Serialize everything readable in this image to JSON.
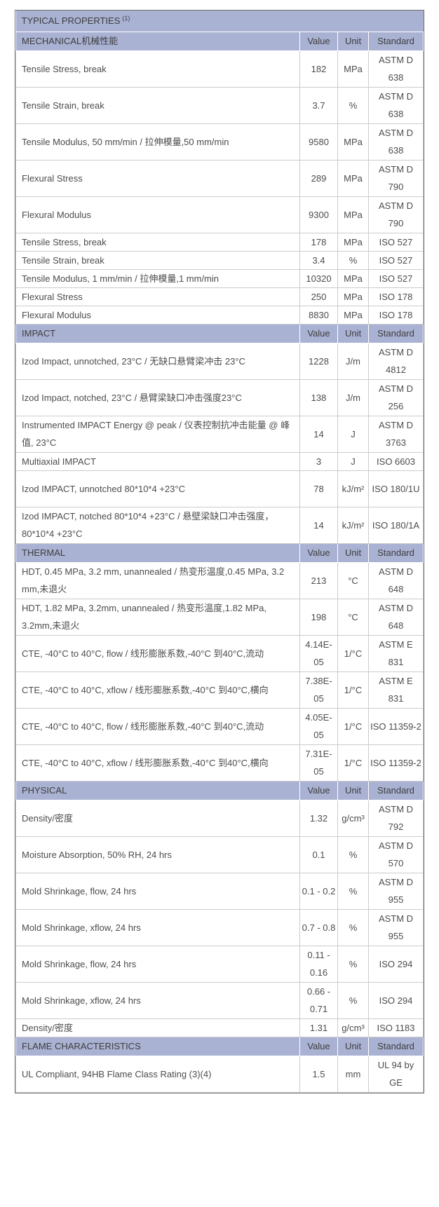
{
  "table": {
    "title": "TYPICAL PROPERTIES",
    "title_footnote": "(1)",
    "columns": [
      "Value",
      "Unit",
      "Standard"
    ],
    "sections": [
      {
        "label": "MECHANICAL机械性能",
        "rows": [
          {
            "property": "Tensile Stress, break",
            "value": "182",
            "unit": "MPa",
            "standard": "ASTM D 638",
            "tall": true
          },
          {
            "property": "Tensile Strain, break",
            "value": "3.7",
            "unit": "%",
            "standard": "ASTM D 638",
            "tall": true
          },
          {
            "property": "Tensile Modulus, 50 mm/min / 拉伸模量,50 mm/min",
            "value": "9580",
            "unit": "MPa",
            "standard": "ASTM D 638",
            "tall": true
          },
          {
            "property": "Flexural Stress",
            "value": "289",
            "unit": "MPa",
            "standard": "ASTM D 790",
            "tall": true
          },
          {
            "property": "Flexural Modulus",
            "value": "9300",
            "unit": "MPa",
            "standard": "ASTM D 790",
            "tall": true
          },
          {
            "property": "Tensile Stress, break",
            "value": "178",
            "unit": "MPa",
            "standard": "ISO 527",
            "tall": false
          },
          {
            "property": "Tensile Strain, break",
            "value": "3.4",
            "unit": "%",
            "standard": "ISO 527",
            "tall": false
          },
          {
            "property": "Tensile Modulus, 1 mm/min / 拉伸模量,1 mm/min",
            "value": "10320",
            "unit": "MPa",
            "standard": "ISO 527",
            "tall": false
          },
          {
            "property": "Flexural Stress",
            "value": "250",
            "unit": "MPa",
            "standard": "ISO 178",
            "tall": false
          },
          {
            "property": "Flexural Modulus",
            "value": "8830",
            "unit": "MPa",
            "standard": "ISO 178",
            "tall": false
          }
        ]
      },
      {
        "label": "IMPACT",
        "rows": [
          {
            "property": "Izod Impact, unnotched, 23°C / 无缺口悬臂梁冲击 23°C",
            "value": "1228",
            "unit": "J/m",
            "standard": "ASTM D 4812",
            "tall": true
          },
          {
            "property": "Izod Impact, notched, 23°C / 悬臂梁缺口冲击强度23°C",
            "value": "138",
            "unit": "J/m",
            "standard": "ASTM D 256",
            "tall": true
          },
          {
            "property": "Instrumented IMPACT Energy @ peak / 仪表控制抗冲击能量 @ 峰值, 23°C",
            "value": "14",
            "unit": "J",
            "standard": "ASTM D 3763",
            "tall": true
          },
          {
            "property": "Multiaxial IMPACT",
            "value": "3",
            "unit": "J",
            "standard": "ISO 6603",
            "tall": false
          },
          {
            "property": "Izod IMPACT, unnotched 80*10*4 +23°C",
            "value": "78",
            "unit": "kJ/m²",
            "standard": "ISO 180/1U",
            "tall": true
          },
          {
            "property": "Izod IMPACT, notched 80*10*4 +23°C / 悬壁梁缺口冲击强度，80*10*4 +23°C",
            "value": "14",
            "unit": "kJ/m²",
            "standard": "ISO 180/1A",
            "tall": true
          }
        ]
      },
      {
        "label": "THERMAL",
        "rows": [
          {
            "property": "HDT, 0.45 MPa, 3.2 mm, unannealed / 热变形温度,0.45 MPa, 3.2 mm,未退火",
            "value": "213",
            "unit": "°C",
            "standard": "ASTM D 648",
            "tall": true
          },
          {
            "property": "HDT, 1.82 MPa, 3.2mm, unannealed / 热变形温度,1.82 MPa, 3.2mm,未退火",
            "value": "198",
            "unit": "°C",
            "standard": "ASTM D 648",
            "tall": true
          },
          {
            "property": "CTE, -40°C to 40°C, flow / 线形膨胀系数,-40°C 到40°C,流动",
            "value": "4.14E-05",
            "unit": "1/°C",
            "standard": "ASTM E 831",
            "tall": true
          },
          {
            "property": "CTE, -40°C to 40°C, xflow / 线形膨胀系数,-40°C 到40°C,横向",
            "value": "7.38E-05",
            "unit": "1/°C",
            "standard": "ASTM E 831",
            "tall": true
          },
          {
            "property": "CTE, -40°C to 40°C, flow / 线形膨胀系数,-40°C 到40°C,流动",
            "value": "4.05E-05",
            "unit": "1/°C",
            "standard": "ISO 11359-2",
            "tall": true
          },
          {
            "property": "CTE, -40°C to 40°C, xflow / 线形膨胀系数,-40°C 到40°C,横向",
            "value": "7.31E-05",
            "unit": "1/°C",
            "standard": "ISO 11359-2",
            "tall": true
          }
        ]
      },
      {
        "label": "PHYSICAL",
        "rows": [
          {
            "property": "Density/密度",
            "value": "1.32",
            "unit": "g/cm³",
            "standard": "ASTM D 792",
            "tall": true
          },
          {
            "property": "Moisture Absorption, 50% RH, 24 hrs",
            "value": "0.1",
            "unit": "%",
            "standard": "ASTM D 570",
            "tall": true
          },
          {
            "property": "Mold Shrinkage, flow, 24 hrs",
            "value": "0.1 - 0.2",
            "unit": "%",
            "standard": "ASTM D 955",
            "tall": true
          },
          {
            "property": "Mold Shrinkage, xflow, 24 hrs",
            "value": "0.7 - 0.8",
            "unit": "%",
            "standard": "ASTM D 955",
            "tall": true
          },
          {
            "property": "Mold Shrinkage, flow, 24 hrs",
            "value": "0.11 - 0.16",
            "unit": "%",
            "standard": "ISO 294",
            "tall": true
          },
          {
            "property": "Mold Shrinkage, xflow, 24 hrs",
            "value": "0.66 - 0.71",
            "unit": "%",
            "standard": "ISO 294",
            "tall": true
          },
          {
            "property": "Density/密度",
            "value": "1.31",
            "unit": "g/cm³",
            "standard": "ISO 1183",
            "tall": false
          }
        ]
      },
      {
        "label": "FLAME CHARACTERISTICS",
        "rows": [
          {
            "property": "UL Compliant, 94HB Flame Class Rating (3)(4)",
            "value": "1.5",
            "unit": "mm",
            "standard": "UL 94 by GE",
            "tall": true
          }
        ]
      }
    ]
  },
  "colors": {
    "section_header_bg": "#aab2d3",
    "grid_border": "#cccccc",
    "outer_border": "#6e6e6e",
    "text": "#4c4c4c"
  }
}
